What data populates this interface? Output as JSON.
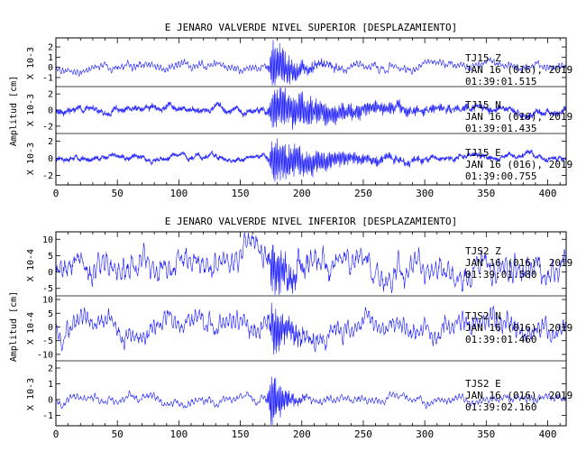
{
  "colors": {
    "trace": "#1a1aff",
    "axis": "#000000",
    "background": "#ffffff"
  },
  "chart_data": [
    {
      "type": "line",
      "title": "E JENARO VALVERDE NIVEL SUPERIOR [DESPLAZAMIENTO]",
      "ylabel": "Amplitud [cm]",
      "xlim": [
        0,
        415
      ],
      "x_ticks": [
        "0",
        "50",
        "100",
        "150",
        "200",
        "250",
        "300",
        "350",
        "400"
      ],
      "panels": [
        {
          "scale": "X 10-3",
          "ylim": [
            -1.8,
            2.8
          ],
          "y_ticks": [
            "2",
            "1",
            "0",
            "-1"
          ],
          "station": "TJ15   Z",
          "date": "JAN 16 (016), 2019",
          "time": "01:39:01.515",
          "trace": {
            "base": 0.1,
            "noise": 0.35,
            "freq": 0.35,
            "event_at": 176,
            "event_amp": 2.4,
            "event_decay": 18,
            "seed": 11
          }
        },
        {
          "scale": "X 10-3",
          "ylim": [
            -2.8,
            2.8
          ],
          "y_ticks": [
            "2",
            "0",
            "-2"
          ],
          "station": "TJ15   N",
          "date": "JAN 16 (016), 2019",
          "time": "01:39:01.435",
          "trace": {
            "base": 0,
            "noise": 0.45,
            "freq": 0.9,
            "event_at": 176,
            "event_amp": 2.5,
            "event_decay": 60,
            "seed": 23
          }
        },
        {
          "scale": "X 10-3",
          "ylim": [
            -3,
            2.8
          ],
          "y_ticks": [
            "2",
            "0",
            "-2"
          ],
          "station": "TJ15   E",
          "date": "JAN 16 (016), 2019",
          "time": "01:39:00.755",
          "trace": {
            "base": 0,
            "noise": 0.35,
            "freq": 1.0,
            "event_at": 176,
            "event_amp": 2.5,
            "event_decay": 45,
            "seed": 37
          }
        }
      ]
    },
    {
      "type": "line",
      "title": "E JENARO VALVERDE NIVEL INFERIOR [DESPLAZAMIENTO]",
      "ylabel": "Amplitud [cm]",
      "xlim": [
        0,
        415
      ],
      "x_ticks": [
        "0",
        "50",
        "100",
        "150",
        "200",
        "250",
        "300",
        "350",
        "400"
      ],
      "panels": [
        {
          "scale": "X 10-4",
          "ylim": [
            -7,
            12
          ],
          "y_ticks": [
            "10",
            "5",
            "0",
            "-5"
          ],
          "station": "TJS2   Z",
          "date": "JAN 16 (016), 2019",
          "time": "01:39:01.580",
          "trace": {
            "base": 1.5,
            "noise": 3.6,
            "freq": 0.25,
            "event_at": 176,
            "event_amp": 8,
            "event_decay": 15,
            "seed": 41
          }
        },
        {
          "scale": "X 10-4",
          "ylim": [
            -12,
            11
          ],
          "y_ticks": [
            "10",
            "5",
            "0",
            "-5",
            "-10"
          ],
          "station": "TJS2   N",
          "date": "JAN 16 (016), 2019",
          "time": "01:39:01.460",
          "trace": {
            "base": 0,
            "noise": 3.4,
            "freq": 0.3,
            "event_at": 176,
            "event_amp": 9,
            "event_decay": 14,
            "seed": 53
          }
        },
        {
          "scale": "X 10-3",
          "ylim": [
            -1.6,
            2.4
          ],
          "y_ticks": [
            "2",
            "1",
            "0",
            "-1"
          ],
          "station": "TJS2   E",
          "date": "JAN 16 (016), 2019",
          "time": "01:39:02.160",
          "trace": {
            "base": 0,
            "noise": 0.22,
            "freq": 0.3,
            "event_at": 175,
            "event_amp": 1.9,
            "event_decay": 10,
            "seed": 67
          }
        }
      ]
    }
  ]
}
